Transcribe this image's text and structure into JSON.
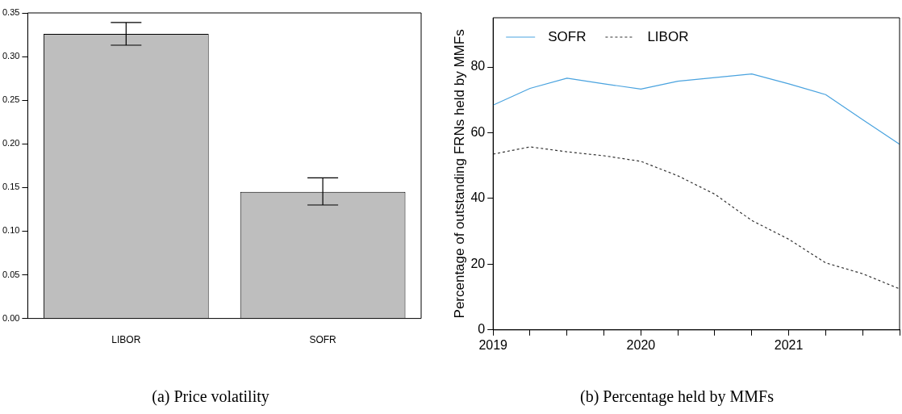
{
  "chart_data": [
    {
      "type": "bar",
      "title": "(a) Price volatility",
      "categories": [
        "LIBOR",
        "SOFR"
      ],
      "values": [
        0.326,
        0.145
      ],
      "color": "#bebebe",
      "errors": [
        [
          0.313,
          0.339
        ],
        [
          0.13,
          0.161
        ]
      ],
      "ylim": [
        0,
        0.35
      ],
      "yticks": [
        {
          "value": 0,
          "label": "0.00"
        },
        {
          "value": 0.05,
          "label": "0.05"
        },
        {
          "value": 0.1,
          "label": "0.10"
        },
        {
          "value": 0.15,
          "label": "0.15"
        },
        {
          "value": 0.2,
          "label": "0.20"
        },
        {
          "value": 0.25,
          "label": "0.25"
        },
        {
          "value": 0.3,
          "label": "0.30"
        },
        {
          "value": 0.35,
          "label": "0.35"
        }
      ],
      "grid": false,
      "legend": false
    },
    {
      "type": "line",
      "title": "(b) Percentage held by MMFs",
      "ylabel": "Percentage of outstanding FRNs held by MMFs",
      "x": [
        2019,
        2019.25,
        2019.5,
        2019.75,
        2020,
        2020.25,
        2020.5,
        2020.75,
        2021,
        2021.25,
        2021.5,
        2021.75
      ],
      "series": [
        {
          "name": "SOFR",
          "color": "#4aa3df",
          "line_style": "solid",
          "values": [
            68.4,
            73.5,
            76.6,
            74.9,
            73.3,
            75.7,
            76.8,
            77.9,
            74.9,
            71.6,
            64.0,
            56.5
          ]
        },
        {
          "name": "LIBOR",
          "color": "#333333",
          "line_style": "dotted",
          "values": [
            53.5,
            55.7,
            54.2,
            53.0,
            51.3,
            46.9,
            41.3,
            33.3,
            27.6,
            20.4,
            17.1,
            12.5
          ]
        }
      ],
      "xlim": [
        2019,
        2021.75
      ],
      "xticks": [
        2019,
        {
          "value": 2019.25,
          "label": null
        },
        {
          "value": 2019.5,
          "label": null
        },
        {
          "value": 2019.75,
          "label": null
        },
        2020,
        {
          "value": 2020.25,
          "label": null
        },
        {
          "value": 2020.5,
          "label": null
        },
        {
          "value": 2020.75,
          "label": null
        },
        2021,
        {
          "value": 2021.25,
          "label": null
        },
        {
          "value": 2021.5,
          "label": null
        },
        {
          "value": 2021.75,
          "label": null
        }
      ],
      "ylim": [
        0,
        95
      ],
      "yticks": [
        0,
        20,
        40,
        60,
        80
      ],
      "grid": false,
      "legend": "top left",
      "marker": "none"
    }
  ]
}
